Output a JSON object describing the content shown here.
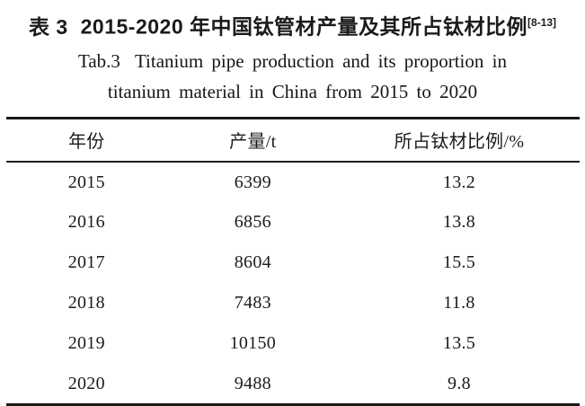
{
  "page": {
    "background": "#ffffff",
    "text_color": "#1b1b1b",
    "rule_color": "#1a1a1a"
  },
  "title": {
    "zh_label": "表 3",
    "zh_text": "2015-2020 年中国钛管材产量及其所占钛材比例",
    "zh_reference": "[8-13]",
    "en_label": "Tab.3",
    "en_line1": "Titanium pipe production and its proportion in",
    "en_line2": "titanium material in China from 2015 to 2020"
  },
  "table": {
    "columns": [
      "年份",
      "产量/t",
      "所占钛材比例/%"
    ],
    "rows": [
      [
        "2015",
        "6399",
        "13.2"
      ],
      [
        "2016",
        "6856",
        "13.8"
      ],
      [
        "2017",
        "8604",
        "15.5"
      ],
      [
        "2018",
        "7483",
        "11.8"
      ],
      [
        "2019",
        "10150",
        "13.5"
      ],
      [
        "2020",
        "9488",
        "9.8"
      ]
    ]
  },
  "chart_data": {
    "type": "table",
    "title": "2015-2020 年中国钛管材产量及其所占钛材比例",
    "categories": [
      2015,
      2016,
      2017,
      2018,
      2019,
      2020
    ],
    "series": [
      {
        "name": "产量/t",
        "values": [
          6399,
          6856,
          8604,
          7483,
          10150,
          9488
        ]
      },
      {
        "name": "所占钛材比例/%",
        "values": [
          13.2,
          13.8,
          15.5,
          11.8,
          13.5,
          9.8
        ]
      }
    ]
  }
}
